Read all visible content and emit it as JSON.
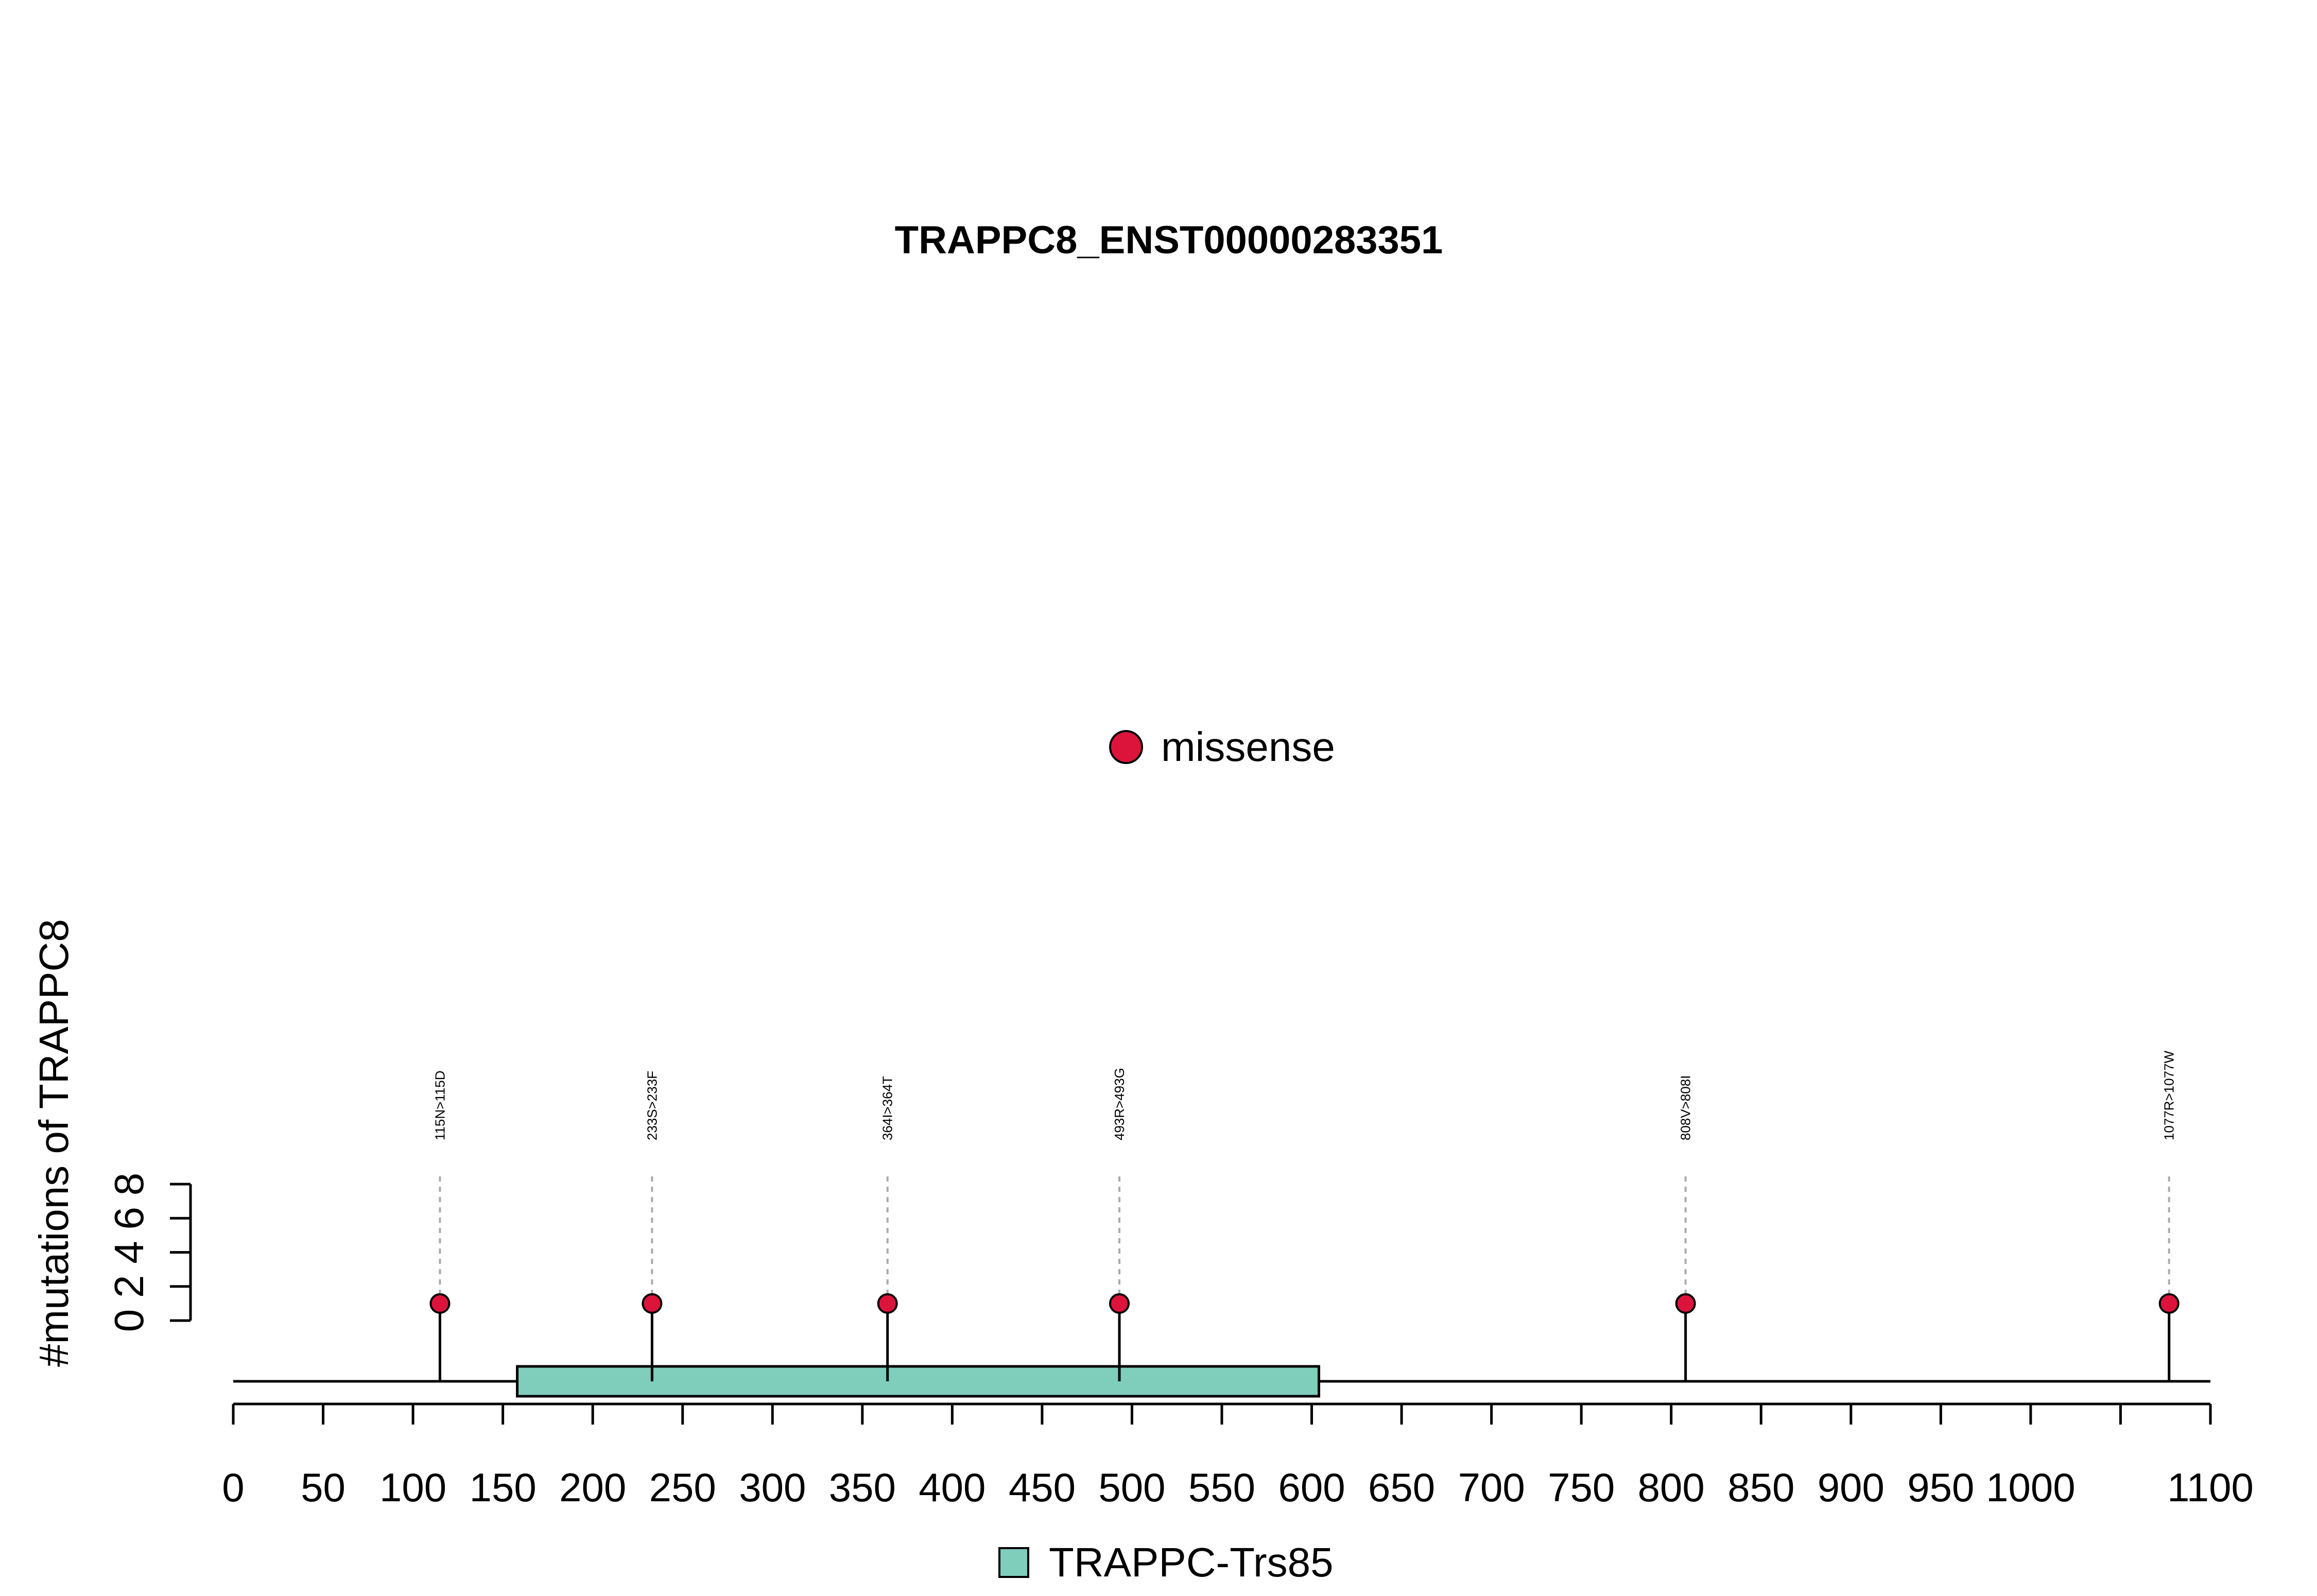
{
  "chart_data": {
    "type": "lollipop",
    "title": "TRAPPC8_ENST00000283351",
    "ylabel": "#mutations of TRAPPC8",
    "x_range": [
      0,
      1100
    ],
    "x_ticks": [
      0,
      50,
      100,
      150,
      200,
      250,
      300,
      350,
      400,
      450,
      500,
      550,
      600,
      650,
      700,
      750,
      800,
      850,
      900,
      950,
      1000,
      1050,
      1100
    ],
    "x_tick_labels": [
      "0",
      "50",
      "100",
      "150",
      "200",
      "250",
      "300",
      "350",
      "400",
      "450",
      "500",
      "550",
      "600",
      "650",
      "700",
      "750",
      "800",
      "850",
      "900",
      "950",
      "1000",
      "",
      "1100"
    ],
    "y_range": [
      0,
      8
    ],
    "y_ticks": [
      0,
      2,
      4,
      6,
      8
    ],
    "y_tick_labels": [
      "0",
      "2",
      "4",
      "6",
      "8"
    ],
    "protein_length": 1100,
    "domains": [
      {
        "name": "TRAPPC-Trs85",
        "start": 158,
        "end": 604,
        "color": "#7FCDBB"
      }
    ],
    "mutations": [
      {
        "position": 115,
        "label": "115N>115D",
        "count": 1,
        "type": "missense"
      },
      {
        "position": 233,
        "label": "233S>233F",
        "count": 1,
        "type": "missense"
      },
      {
        "position": 364,
        "label": "364I>364T",
        "count": 1,
        "type": "missense"
      },
      {
        "position": 493,
        "label": "493R>493G",
        "count": 1,
        "type": "missense"
      },
      {
        "position": 808,
        "label": "808V>808I",
        "count": 1,
        "type": "missense"
      },
      {
        "position": 1077,
        "label": "1077R>1077W",
        "count": 1,
        "type": "missense"
      }
    ],
    "mutation_legend": [
      {
        "label": "missense",
        "color": "#DC143C"
      }
    ],
    "domain_legend": [
      {
        "label": "TRAPPC-Trs85",
        "color": "#7FCDBB"
      }
    ],
    "legend_position": "top-center (mutation types), bottom-center (domains)"
  }
}
